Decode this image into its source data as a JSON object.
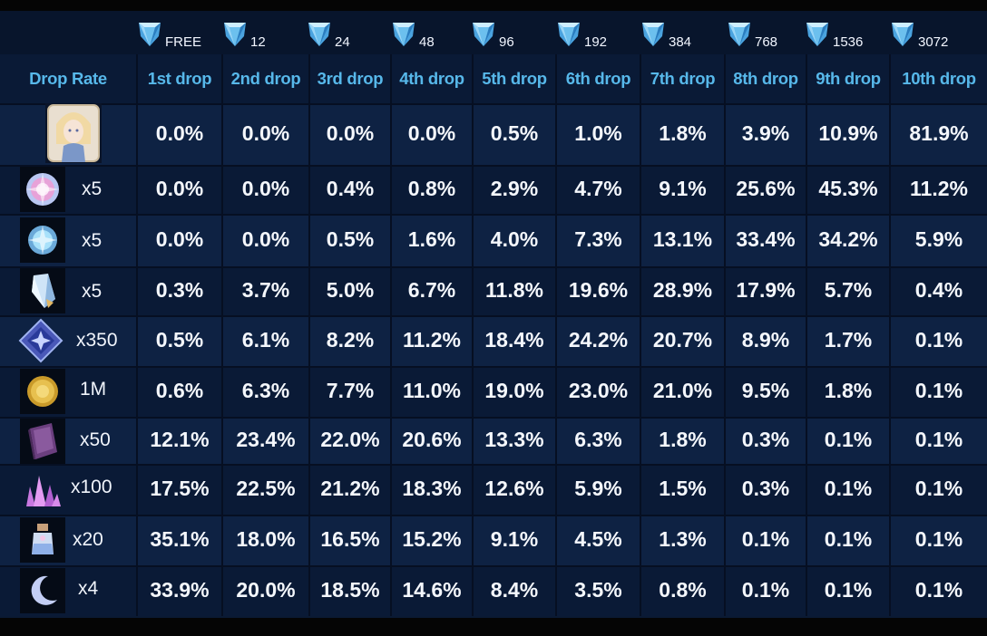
{
  "costs": [
    "FREE",
    "12",
    "24",
    "48",
    "96",
    "192",
    "384",
    "768",
    "1536",
    "3072"
  ],
  "header": {
    "corner": "Drop Rate",
    "drops": [
      "1st drop",
      "2nd drop",
      "3rd drop",
      "4th drop",
      "5th drop",
      "6th drop",
      "7th drop",
      "8th drop",
      "9th drop",
      "10th drop"
    ]
  },
  "rows": [
    {
      "icon": "character-portrait-icon",
      "qty": "",
      "rates": [
        "0.0%",
        "0.0%",
        "0.0%",
        "0.0%",
        "0.5%",
        "1.0%",
        "1.8%",
        "3.9%",
        "10.9%",
        "81.9%"
      ]
    },
    {
      "icon": "pink-orb-icon",
      "qty": "x5",
      "rates": [
        "0.0%",
        "0.0%",
        "0.4%",
        "0.8%",
        "2.9%",
        "4.7%",
        "9.1%",
        "25.6%",
        "45.3%",
        "11.2%"
      ]
    },
    {
      "icon": "blue-orb-icon",
      "qty": "x5",
      "rates": [
        "0.0%",
        "0.0%",
        "0.5%",
        "1.6%",
        "4.0%",
        "7.3%",
        "13.1%",
        "33.4%",
        "34.2%",
        "5.9%"
      ]
    },
    {
      "icon": "crystal-shard-icon",
      "qty": "x5",
      "rates": [
        "0.3%",
        "3.7%",
        "5.0%",
        "6.7%",
        "11.8%",
        "19.6%",
        "28.9%",
        "17.9%",
        "5.7%",
        "0.4%"
      ]
    },
    {
      "icon": "star-crystal-icon",
      "qty": "x350",
      "rates": [
        "0.5%",
        "6.1%",
        "8.2%",
        "11.2%",
        "18.4%",
        "24.2%",
        "20.7%",
        "8.9%",
        "1.7%",
        "0.1%"
      ]
    },
    {
      "icon": "gold-coin-icon",
      "qty": "1M",
      "rates": [
        "0.6%",
        "6.3%",
        "7.7%",
        "11.0%",
        "19.0%",
        "23.0%",
        "21.0%",
        "9.5%",
        "1.8%",
        "0.1%"
      ]
    },
    {
      "icon": "purple-book-icon",
      "qty": "x50",
      "rates": [
        "12.1%",
        "23.4%",
        "22.0%",
        "20.6%",
        "13.3%",
        "6.3%",
        "1.8%",
        "0.3%",
        "0.1%",
        "0.1%"
      ]
    },
    {
      "icon": "pink-crystals-icon",
      "qty": "x100",
      "rates": [
        "17.5%",
        "22.5%",
        "21.2%",
        "18.3%",
        "12.6%",
        "5.9%",
        "1.5%",
        "0.3%",
        "0.1%",
        "0.1%"
      ]
    },
    {
      "icon": "potion-jar-icon",
      "qty": "x20",
      "rates": [
        "35.1%",
        "18.0%",
        "16.5%",
        "15.2%",
        "9.1%",
        "4.5%",
        "1.3%",
        "0.1%",
        "0.1%",
        "0.1%"
      ]
    },
    {
      "icon": "crescent-moon-icon",
      "qty": "x4",
      "rates": [
        "33.9%",
        "20.0%",
        "18.5%",
        "14.6%",
        "8.4%",
        "3.5%",
        "0.8%",
        "0.1%",
        "0.1%",
        "0.1%"
      ]
    }
  ]
}
